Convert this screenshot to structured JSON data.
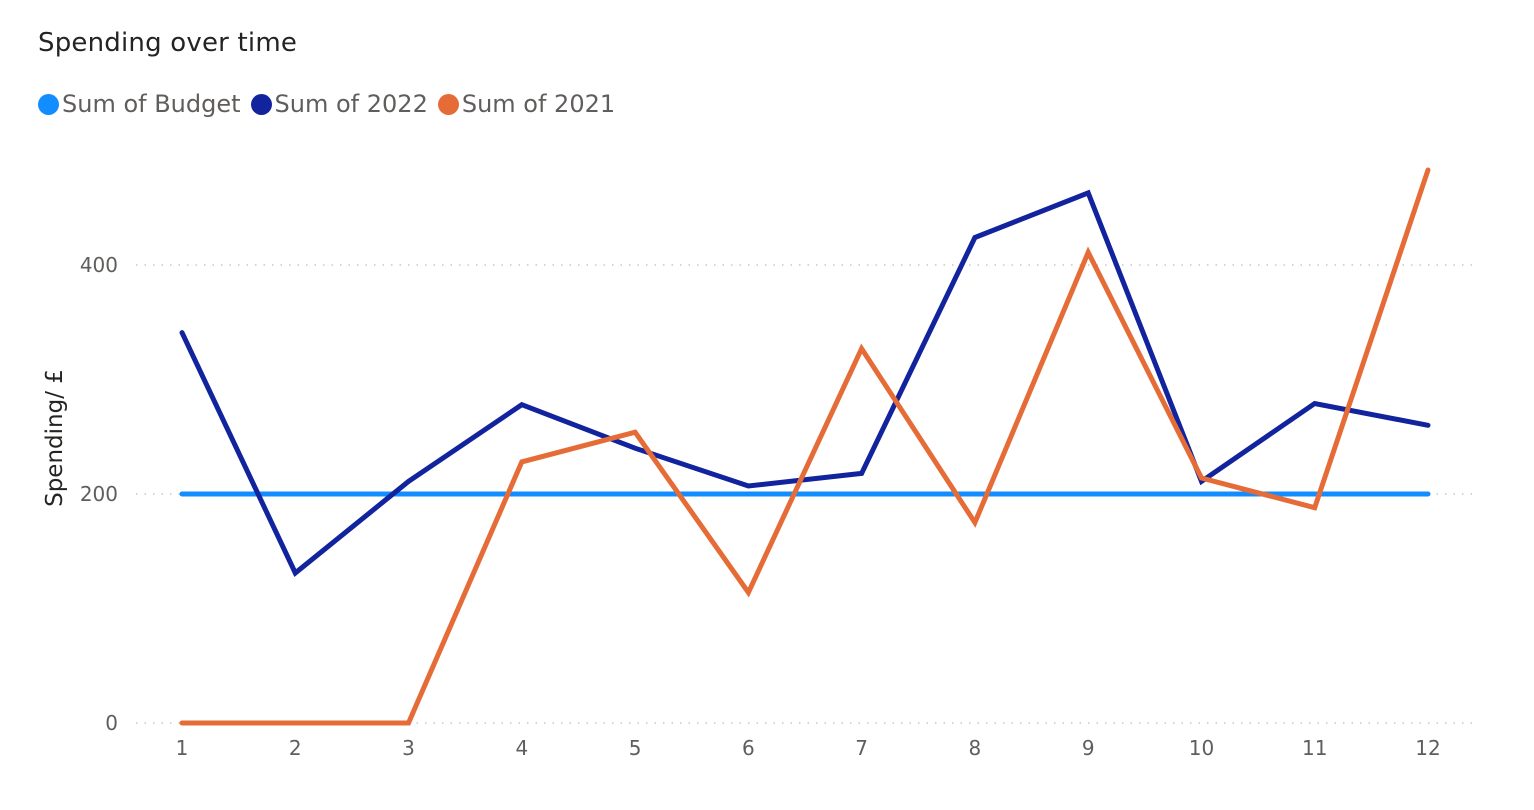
{
  "chart_data": {
    "type": "line",
    "title": "Spending over time",
    "xlabel": "",
    "ylabel": "Spending/ £",
    "x": [
      1,
      2,
      3,
      4,
      5,
      6,
      7,
      8,
      9,
      10,
      11,
      12
    ],
    "x_tick_labels": [
      "1",
      "2",
      "3",
      "4",
      "5",
      "6",
      "7",
      "8",
      "9",
      "10",
      "11",
      "12"
    ],
    "y_ticks": [
      0,
      200,
      400
    ],
    "y_tick_labels": [
      "0",
      "200",
      "400"
    ],
    "ylim": [
      0,
      500
    ],
    "grid": "horizontal-dotted",
    "legend_position": "top-left",
    "series": [
      {
        "name": "Sum of Budget",
        "color": "#118DFF",
        "values": [
          200,
          200,
          200,
          200,
          200,
          200,
          200,
          200,
          200,
          200,
          200,
          200
        ]
      },
      {
        "name": "Sum of 2022",
        "color": "#12239E",
        "values": [
          341,
          131,
          211,
          278,
          240,
          207,
          218,
          424,
          463,
          211,
          279,
          260
        ]
      },
      {
        "name": "Sum of 2021",
        "color": "#E66C37",
        "values": [
          0,
          0,
          0,
          228,
          254,
          114,
          327,
          175,
          411,
          214,
          188,
          483
        ]
      }
    ]
  }
}
